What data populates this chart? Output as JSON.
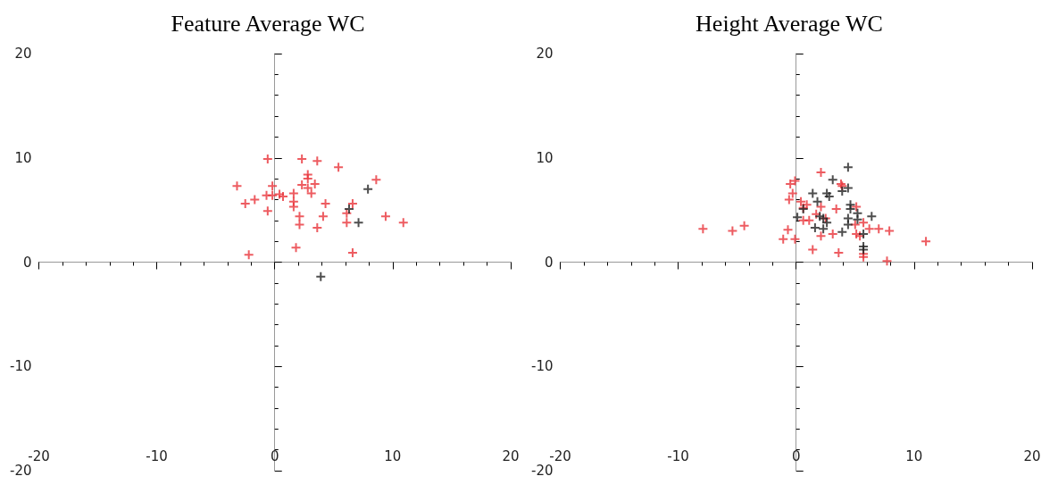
{
  "chart_data": [
    {
      "type": "scatter",
      "title": "Feature Average WC",
      "xlim": [
        -20,
        20
      ],
      "ylim": [
        -20,
        20
      ],
      "xticks": [
        -20,
        -10,
        0,
        10,
        20
      ],
      "yticks": [
        -20,
        -10,
        0,
        10,
        20
      ],
      "marker": "cross",
      "series": [
        {
          "color": "#e8333a",
          "x": [
            -0.6,
            2.3,
            3.6,
            5.4,
            2.8,
            2.8,
            2.3,
            3.4,
            2.8,
            3.1,
            -3.2,
            -0.2,
            -0.7,
            -0.2,
            0.4,
            0.7,
            1.6,
            1.6,
            1.6,
            -1.7,
            -2.5,
            -0.6,
            2.1,
            2.1,
            3.6,
            4.1,
            4.3,
            6.1,
            6.1,
            6.6,
            8.6,
            9.4,
            10.9,
            1.8,
            -2.2,
            6.6
          ],
          "values": [
            9.9,
            9.9,
            9.7,
            9.1,
            8.4,
            8.0,
            7.4,
            7.5,
            7.1,
            6.6,
            7.3,
            7.3,
            6.4,
            6.4,
            6.5,
            6.3,
            6.6,
            5.8,
            5.3,
            6.0,
            5.6,
            4.9,
            4.4,
            3.6,
            3.3,
            4.4,
            5.6,
            4.7,
            3.8,
            5.6,
            7.9,
            4.4,
            3.8,
            1.4,
            0.7,
            0.9
          ]
        },
        {
          "color": "#222222",
          "x": [
            7.9,
            6.3,
            7.1,
            3.9
          ],
          "values": [
            7.0,
            5.1,
            3.8,
            -1.4
          ]
        }
      ]
    },
    {
      "type": "scatter",
      "title": "Height Average WC",
      "xlim": [
        -20,
        20
      ],
      "ylim": [
        -20,
        20
      ],
      "xticks": [
        -20,
        -10,
        0,
        10,
        20
      ],
      "yticks": [
        -20,
        -10,
        0,
        10,
        20
      ],
      "marker": "cross",
      "series": [
        {
          "color": "#e8333a",
          "x": [
            -7.9,
            -5.4,
            -4.4,
            -1.1,
            -0.7,
            -0.1,
            -0.5,
            -0.1,
            -0.3,
            -0.6,
            1.4,
            2.1,
            0.4,
            0.9,
            0.6,
            1.1,
            0.6,
            1.7,
            2.1,
            2.5,
            3.4,
            3.8,
            3.9,
            3.1,
            2.1,
            3.6,
            5.1,
            5.0,
            5.7,
            5.1,
            5.4,
            6.2,
            7.0,
            7.9,
            5.7,
            5.7,
            7.7,
            11.0
          ],
          "values": [
            3.2,
            3.0,
            3.5,
            2.2,
            3.1,
            2.2,
            7.5,
            7.8,
            6.6,
            6.0,
            1.2,
            8.6,
            5.8,
            5.5,
            5.2,
            4.0,
            4.0,
            4.6,
            5.3,
            4.2,
            5.1,
            7.5,
            7.3,
            2.7,
            2.5,
            0.9,
            5.3,
            3.6,
            3.8,
            2.7,
            2.5,
            3.2,
            3.2,
            3.0,
            0.8,
            0.5,
            0.1,
            2.0
          ]
        },
        {
          "color": "#222222",
          "x": [
            4.4,
            3.1,
            3.9,
            4.4,
            1.4,
            2.6,
            2.8,
            1.8,
            0.6,
            0.1,
            2.0,
            2.3,
            2.6,
            1.6,
            2.3,
            3.9,
            4.6,
            4.6,
            4.4,
            4.4,
            5.2,
            5.2,
            6.4,
            5.7,
            5.7,
            5.7
          ],
          "values": [
            9.1,
            7.9,
            6.8,
            7.1,
            6.6,
            6.6,
            6.3,
            5.8,
            5.1,
            4.3,
            4.4,
            4.2,
            3.8,
            3.3,
            3.2,
            2.9,
            5.5,
            5.1,
            4.2,
            3.6,
            4.7,
            4.1,
            4.4,
            2.7,
            1.5,
            1.2
          ]
        }
      ]
    }
  ]
}
